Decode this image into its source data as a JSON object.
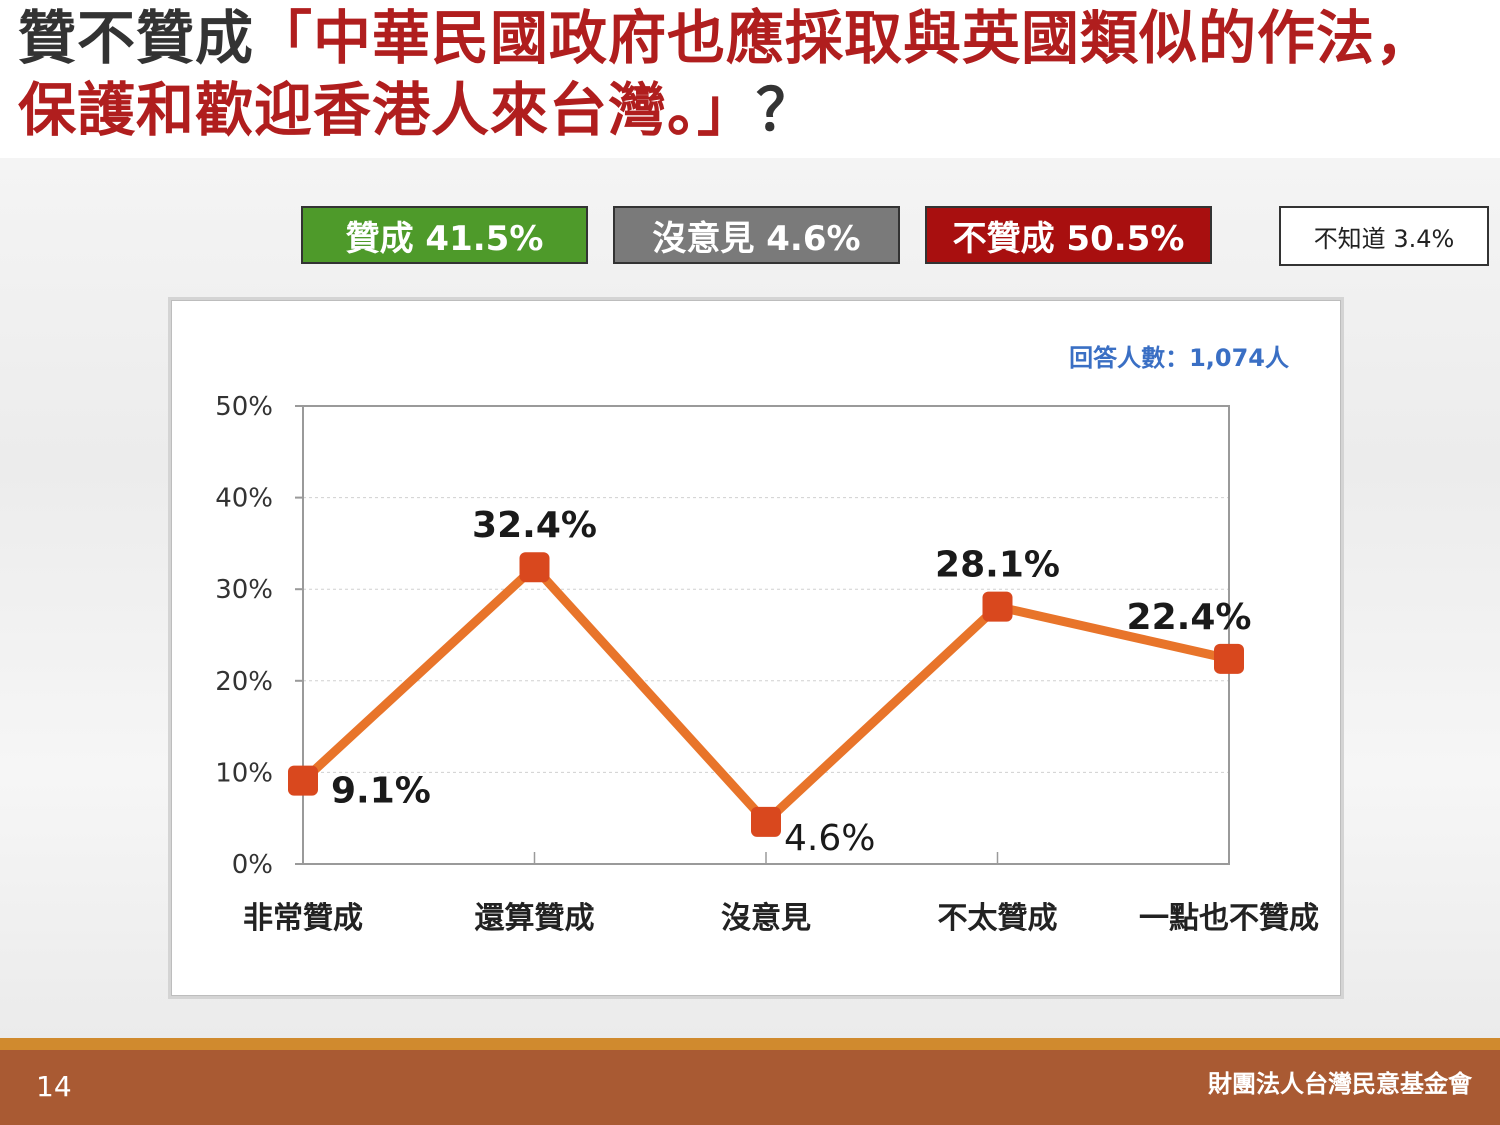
{
  "title": {
    "prefix": "贊不贊成",
    "quote": "「中華民國政府也應採取與英國類似的作法，保護和歡迎香港人來台灣。」",
    "suffix": "？"
  },
  "summary": {
    "agree": "贊成 41.5%",
    "neutral": "沒意見 4.6%",
    "disagree": "不贊成 50.5%",
    "unknown": "不知道 3.4%"
  },
  "colors": {
    "agree": "#4e9a2a",
    "neutral": "#7a7a7a",
    "disagree": "#a80f0f",
    "line": "#e8742a",
    "marker": "#d9481e",
    "respondents": "#3a6fc4"
  },
  "chart_data": {
    "type": "line",
    "categories": [
      "非常贊成",
      "還算贊成",
      "沒意見",
      "不太贊成",
      "一點也不贊成"
    ],
    "values": [
      9.1,
      32.4,
      4.6,
      28.1,
      22.4
    ],
    "data_labels": [
      "9.1%",
      "32.4%",
      "4.6%",
      "28.1%",
      "22.4%"
    ],
    "y_ticks": [
      "0%",
      "10%",
      "20%",
      "30%",
      "40%",
      "50%"
    ],
    "ylim": [
      0,
      50
    ],
    "grid": true,
    "annotation": "回答人數：1,074人"
  },
  "footer": {
    "page_number": "14",
    "organization": "財團法人台灣民意基金會"
  }
}
